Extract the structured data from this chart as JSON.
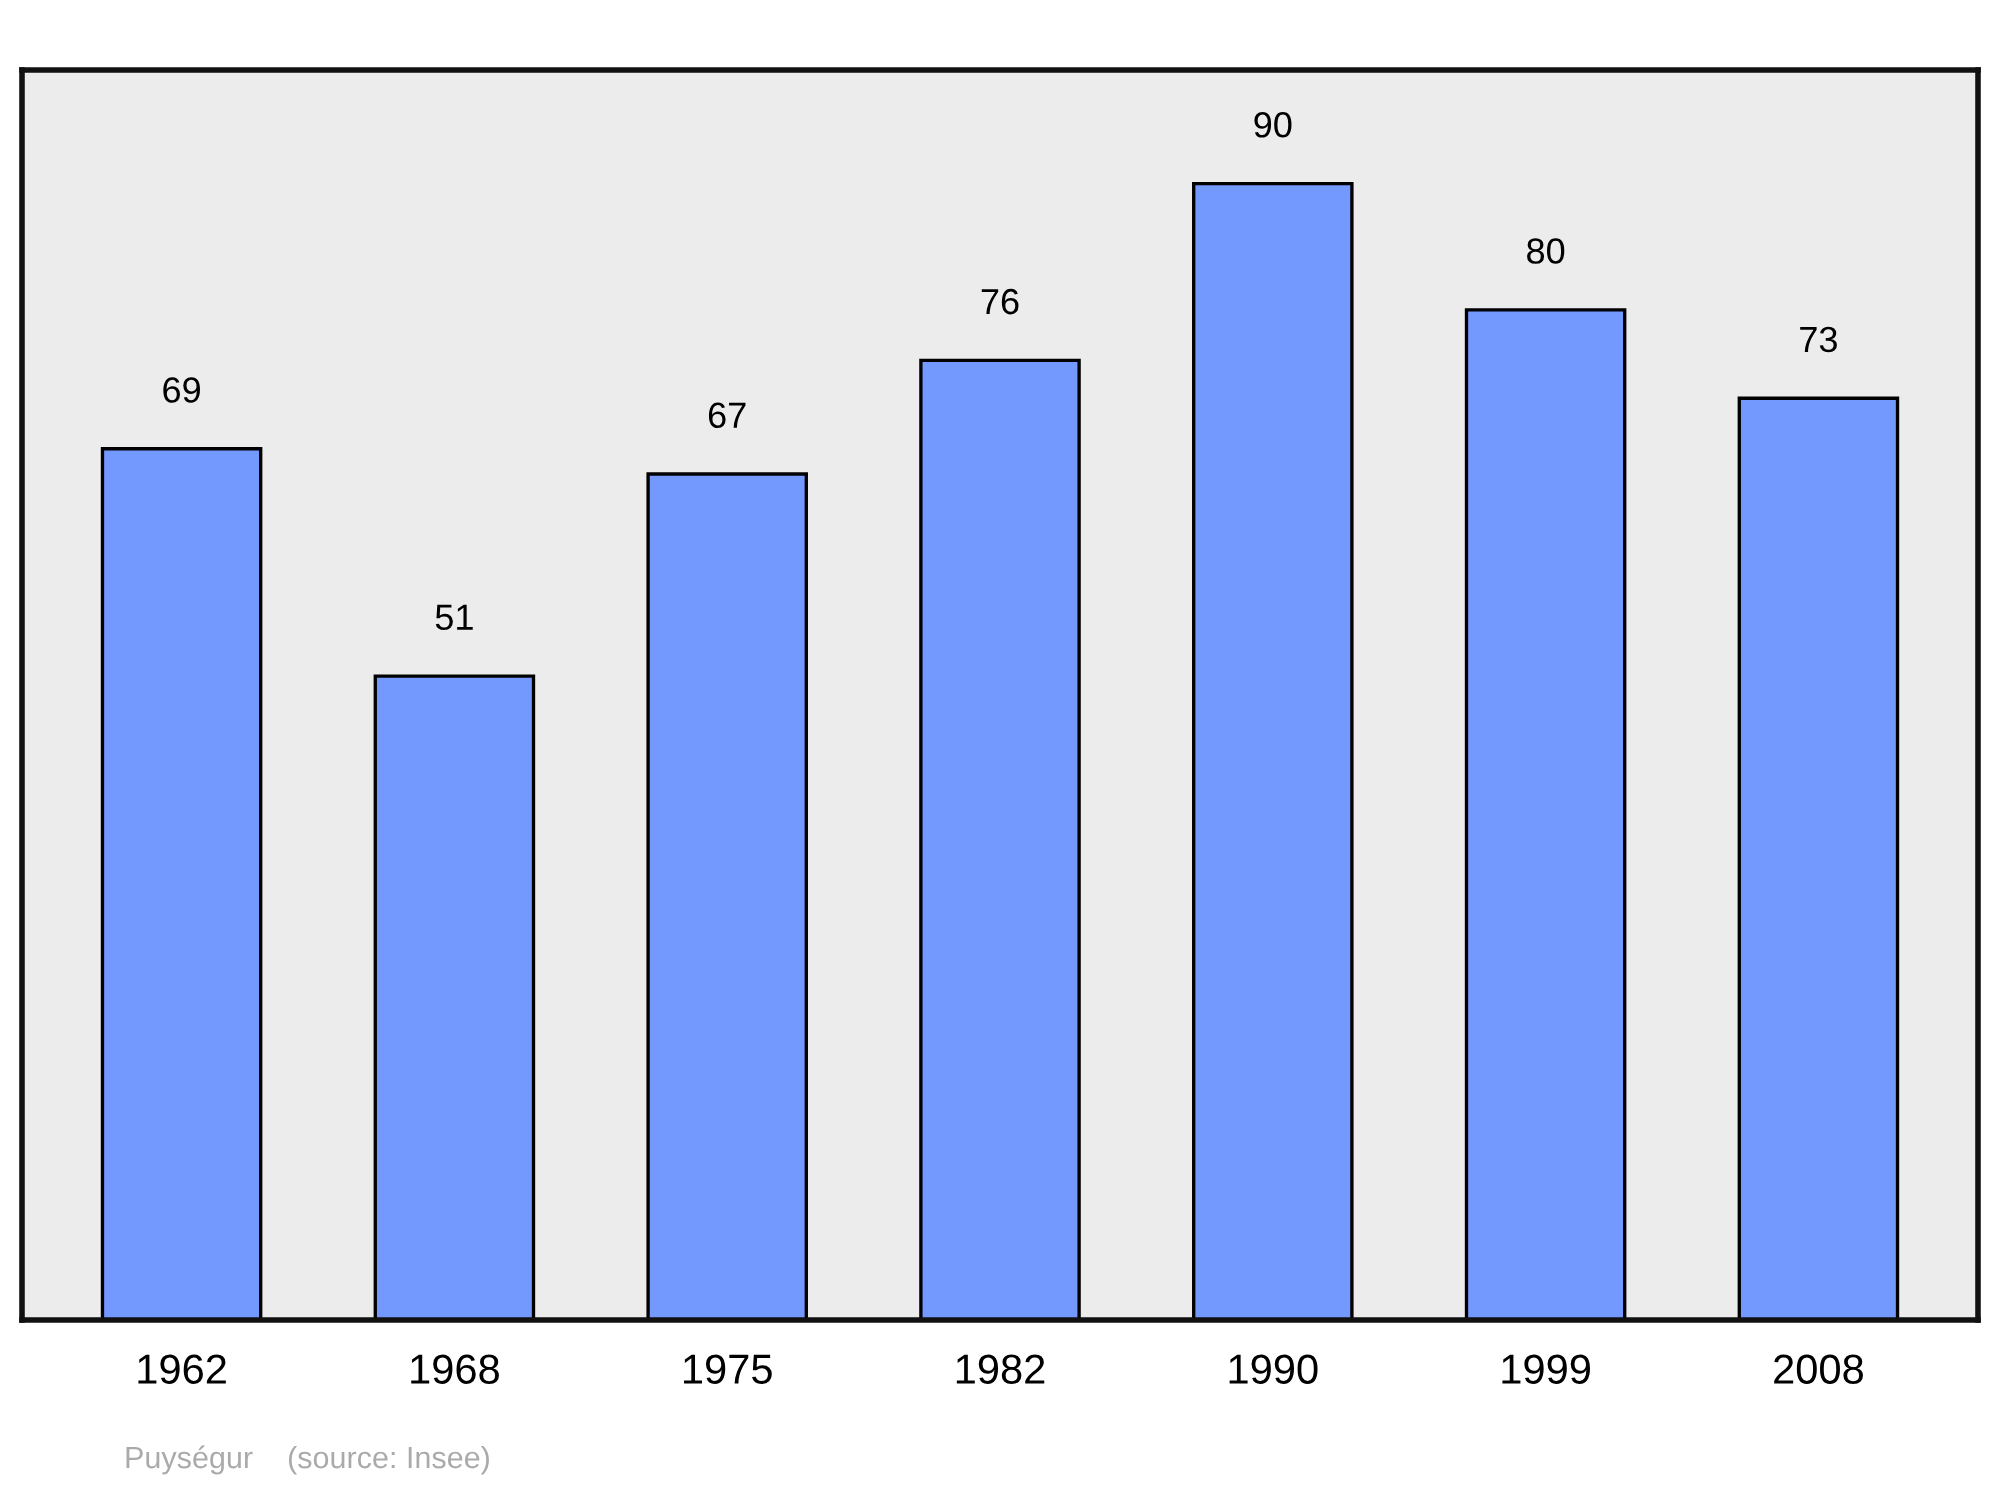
{
  "chart_data": {
    "type": "bar",
    "categories": [
      "1962",
      "1968",
      "1975",
      "1982",
      "1990",
      "1999",
      "2008"
    ],
    "values": [
      69,
      51,
      67,
      76,
      90,
      80,
      73
    ],
    "color": "#7399ff",
    "data_labels": true,
    "grid": false,
    "legend": false,
    "annotations": [
      "Puységur    (source: Insee)"
    ]
  }
}
